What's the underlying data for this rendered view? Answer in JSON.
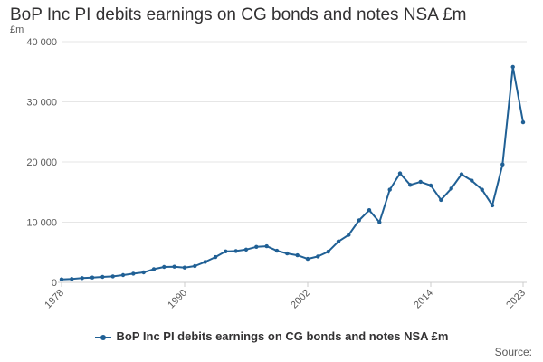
{
  "title": "BoP Inc PI debits earnings on CG bonds and notes NSA £m",
  "source_label": "Source:",
  "colors": {
    "series": "#206095",
    "grid": "#e6e6e6",
    "axis": "#cccccc"
  },
  "chart_data": {
    "type": "line",
    "title": "BoP Inc PI debits earnings on CG bonds and notes NSA £m",
    "ylabel": "£m",
    "xlabel": "",
    "ylim": [
      0,
      40000
    ],
    "xlim": [
      1978,
      2023
    ],
    "yticks": [
      0,
      10000,
      20000,
      30000,
      40000
    ],
    "ytick_labels": [
      "0",
      "10 000",
      "20 000",
      "30 000",
      "40 000"
    ],
    "xticks": [
      1978,
      1990,
      2002,
      2014,
      2023
    ],
    "xtick_labels": [
      "1978",
      "1990",
      "2002",
      "2014",
      "2023"
    ],
    "grid": true,
    "legend_position": "bottom",
    "x": [
      1978,
      1979,
      1980,
      1981,
      1982,
      1983,
      1984,
      1985,
      1986,
      1987,
      1988,
      1989,
      1990,
      1991,
      1992,
      1993,
      1994,
      1995,
      1996,
      1997,
      1998,
      1999,
      2000,
      2001,
      2002,
      2003,
      2004,
      2005,
      2006,
      2007,
      2008,
      2009,
      2010,
      2011,
      2012,
      2013,
      2014,
      2015,
      2016,
      2017,
      2018,
      2019,
      2020,
      2021,
      2022,
      2023
    ],
    "series": [
      {
        "name": "BoP Inc PI debits earnings on CG bonds and notes NSA £m",
        "values": [
          500,
          550,
          700,
          800,
          900,
          1000,
          1200,
          1450,
          1650,
          2200,
          2550,
          2600,
          2450,
          2700,
          3400,
          4200,
          5150,
          5200,
          5450,
          5900,
          6000,
          5250,
          4800,
          4500,
          3900,
          4300,
          5100,
          6800,
          7900,
          10300,
          12000,
          10000,
          15400,
          18100,
          16200,
          16700,
          16100,
          13700,
          15600,
          17950,
          16900,
          15400,
          12800,
          19600,
          35800,
          26600
        ]
      }
    ]
  }
}
